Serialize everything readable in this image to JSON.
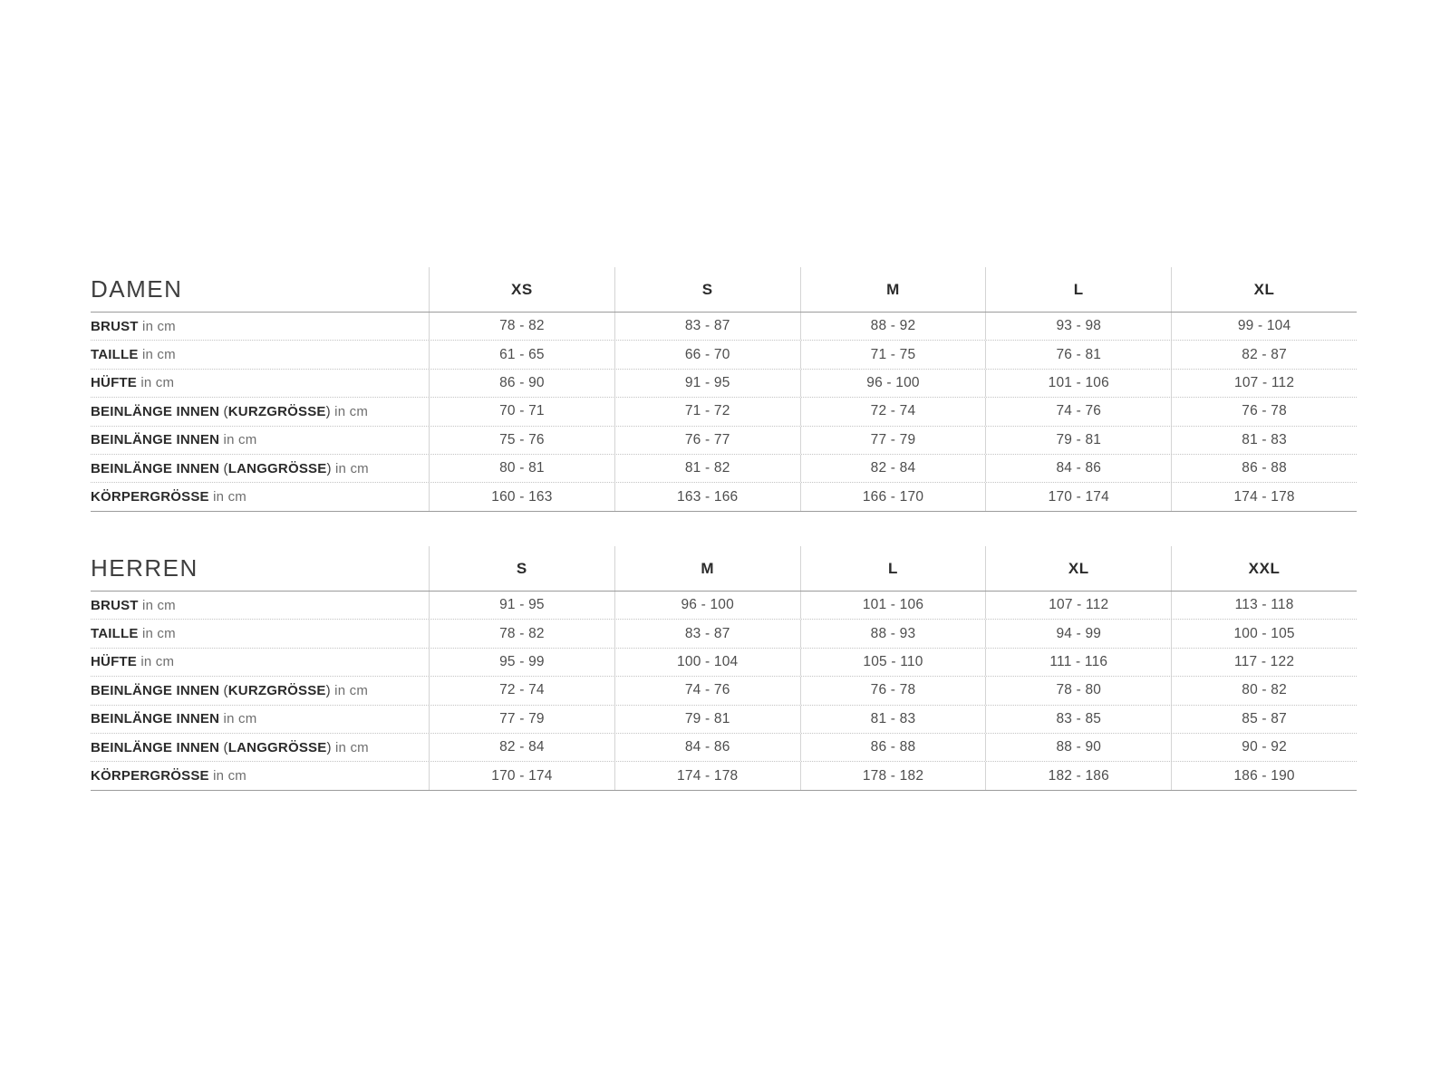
{
  "page": {
    "background": "#ffffff"
  },
  "colors": {
    "title": "#3f3f3f",
    "label_bold": "#2b2b2b",
    "label_dim": "#6e6e6e",
    "value": "#4d4d4d",
    "header": "#2b2b2b",
    "line_solid": "#9b9b9b",
    "line_dotted": "#c4c4c4",
    "line_vertical": "#d4d4d4"
  },
  "tables": [
    {
      "title": "DAMEN",
      "sizes": [
        "XS",
        "S",
        "M",
        "L",
        "XL"
      ],
      "rows": [
        {
          "label": [
            [
              "b",
              "BRUST"
            ],
            [
              "d",
              " in cm"
            ]
          ],
          "values": [
            "78 - 82",
            "83 - 87",
            "88 - 92",
            "93 - 98",
            "99 - 104"
          ]
        },
        {
          "label": [
            [
              "b",
              "TAILLE"
            ],
            [
              "d",
              " in cm"
            ]
          ],
          "values": [
            "61 - 65",
            "66 - 70",
            "71 - 75",
            "76 - 81",
            "82 - 87"
          ]
        },
        {
          "label": [
            [
              "b",
              "HÜFTE"
            ],
            [
              "d",
              " in cm"
            ]
          ],
          "values": [
            "86 - 90",
            "91 - 95",
            "96 - 100",
            "101 - 106",
            "107 - 112"
          ]
        },
        {
          "label": [
            [
              "b",
              "BEINLÄNGE INNEN"
            ],
            [
              "p",
              " ("
            ],
            [
              "b",
              "KURZGRÖSSE"
            ],
            [
              "p",
              ")"
            ],
            [
              "d",
              " in cm"
            ]
          ],
          "values": [
            "70 - 71",
            "71 - 72",
            "72 - 74",
            "74 - 76",
            "76 - 78"
          ]
        },
        {
          "label": [
            [
              "b",
              "BEINLÄNGE INNEN"
            ],
            [
              "d",
              " in cm"
            ]
          ],
          "values": [
            "75 - 76",
            "76 - 77",
            "77 - 79",
            "79 - 81",
            "81 - 83"
          ]
        },
        {
          "label": [
            [
              "b",
              "BEINLÄNGE INNEN"
            ],
            [
              "p",
              " ("
            ],
            [
              "b",
              "LANGGRÖSSE"
            ],
            [
              "p",
              ")"
            ],
            [
              "d",
              " in cm"
            ]
          ],
          "values": [
            "80 - 81",
            "81 - 82",
            "82 - 84",
            "84 - 86",
            "86 - 88"
          ]
        },
        {
          "label": [
            [
              "b",
              "KÖRPERGRÖSSE"
            ],
            [
              "d",
              " in cm"
            ]
          ],
          "values": [
            "160 - 163",
            "163 - 166",
            "166 - 170",
            "170 - 174",
            "174 - 178"
          ]
        }
      ]
    },
    {
      "title": "HERREN",
      "sizes": [
        "S",
        "M",
        "L",
        "XL",
        "XXL"
      ],
      "rows": [
        {
          "label": [
            [
              "b",
              "BRUST"
            ],
            [
              "d",
              " in cm"
            ]
          ],
          "values": [
            "91 - 95",
            "96 - 100",
            "101 - 106",
            "107 - 112",
            "113 - 118"
          ]
        },
        {
          "label": [
            [
              "b",
              "TAILLE"
            ],
            [
              "d",
              " in cm"
            ]
          ],
          "values": [
            "78 - 82",
            "83 - 87",
            "88 - 93",
            "94 - 99",
            "100 - 105"
          ]
        },
        {
          "label": [
            [
              "b",
              "HÜFTE"
            ],
            [
              "d",
              " in cm"
            ]
          ],
          "values": [
            "95 - 99",
            "100 - 104",
            "105 - 110",
            "111 - 116",
            "117 - 122"
          ]
        },
        {
          "label": [
            [
              "b",
              "BEINLÄNGE INNEN"
            ],
            [
              "p",
              " ("
            ],
            [
              "b",
              "KURZGRÖSSE"
            ],
            [
              "p",
              ")"
            ],
            [
              "d",
              " in cm"
            ]
          ],
          "values": [
            "72 - 74",
            "74 - 76",
            "76 - 78",
            "78 - 80",
            "80 - 82"
          ]
        },
        {
          "label": [
            [
              "b",
              "BEINLÄNGE INNEN"
            ],
            [
              "d",
              " in cm"
            ]
          ],
          "values": [
            "77 - 79",
            "79 - 81",
            "81 - 83",
            "83 - 85",
            "85 - 87"
          ]
        },
        {
          "label": [
            [
              "b",
              "BEINLÄNGE INNEN"
            ],
            [
              "p",
              " ("
            ],
            [
              "b",
              "LANGGRÖSSE"
            ],
            [
              "p",
              ")"
            ],
            [
              "d",
              " in cm"
            ]
          ],
          "values": [
            "82 - 84",
            "84 - 86",
            "86 - 88",
            "88 - 90",
            "90 - 92"
          ]
        },
        {
          "label": [
            [
              "b",
              "KÖRPERGRÖSSE"
            ],
            [
              "d",
              " in cm"
            ]
          ],
          "values": [
            "170 - 174",
            "174 - 178",
            "178 - 182",
            "182 - 186",
            "186 - 190"
          ]
        }
      ]
    }
  ]
}
